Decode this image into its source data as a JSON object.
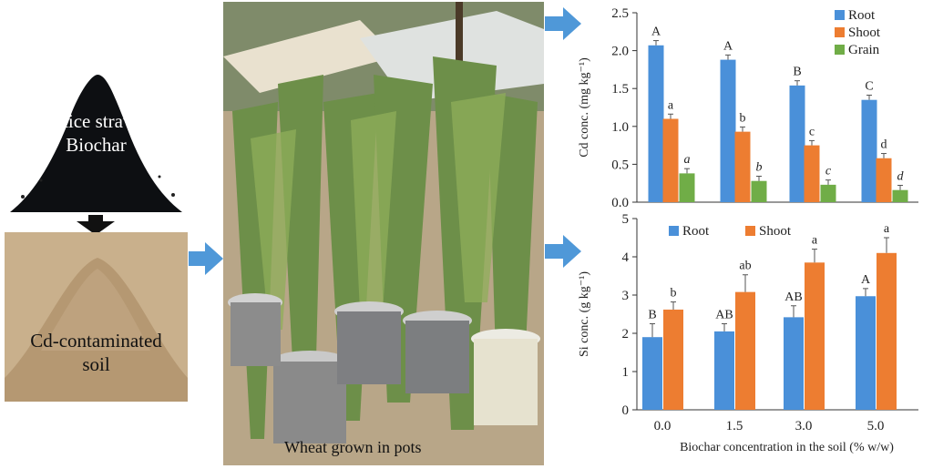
{
  "colors": {
    "root": "#4a90d9",
    "shoot": "#ed7d31",
    "grain": "#70ad47",
    "arrow": "#4f98d8"
  },
  "labels": {
    "biochar": [
      "Rice straw",
      "Biochar"
    ],
    "soil": [
      "Cd-contaminated",
      "soil"
    ],
    "wheat": "Wheat grown in pots"
  },
  "chart_data": [
    {
      "type": "bar",
      "ylabel": "Cd conc. (mg kg⁻¹)",
      "ylim": [
        0,
        2.5
      ],
      "yticks": [
        "0.0",
        "0.5",
        "1.0",
        "1.5",
        "2.0",
        "2.5"
      ],
      "categories": [
        "0.0",
        "1.5",
        "3.0",
        "5.0"
      ],
      "legend_position": "top-right",
      "series": [
        {
          "name": "Root",
          "values": [
            2.07,
            1.88,
            1.54,
            1.35
          ],
          "letters": [
            "A",
            "A",
            "B",
            "C"
          ]
        },
        {
          "name": "Shoot",
          "values": [
            1.1,
            0.93,
            0.75,
            0.58
          ],
          "letters": [
            "a",
            "b",
            "c",
            "d"
          ]
        },
        {
          "name": "Grain",
          "values": [
            0.38,
            0.28,
            0.23,
            0.16
          ],
          "letters": [
            "a",
            "b",
            "c",
            "d"
          ]
        }
      ]
    },
    {
      "type": "bar",
      "ylabel": "Si conc. (g kg⁻¹)",
      "xlabel": "Biochar concentration in the soil (% w/w)",
      "ylim": [
        0,
        5
      ],
      "yticks": [
        "0",
        "1",
        "2",
        "3",
        "4",
        "5"
      ],
      "categories": [
        "0.0",
        "1.5",
        "3.0",
        "5.0"
      ],
      "legend_position": "top",
      "series": [
        {
          "name": "Root",
          "values": [
            1.9,
            2.05,
            2.42,
            2.97
          ],
          "errors": [
            0.35,
            0.2,
            0.3,
            0.2
          ],
          "letters": [
            "B",
            "AB",
            "AB",
            "A"
          ]
        },
        {
          "name": "Shoot",
          "values": [
            2.62,
            3.08,
            3.85,
            4.1
          ],
          "errors": [
            0.2,
            0.45,
            0.35,
            0.4
          ],
          "letters": [
            "b",
            "ab",
            "a",
            "a"
          ]
        }
      ]
    }
  ]
}
